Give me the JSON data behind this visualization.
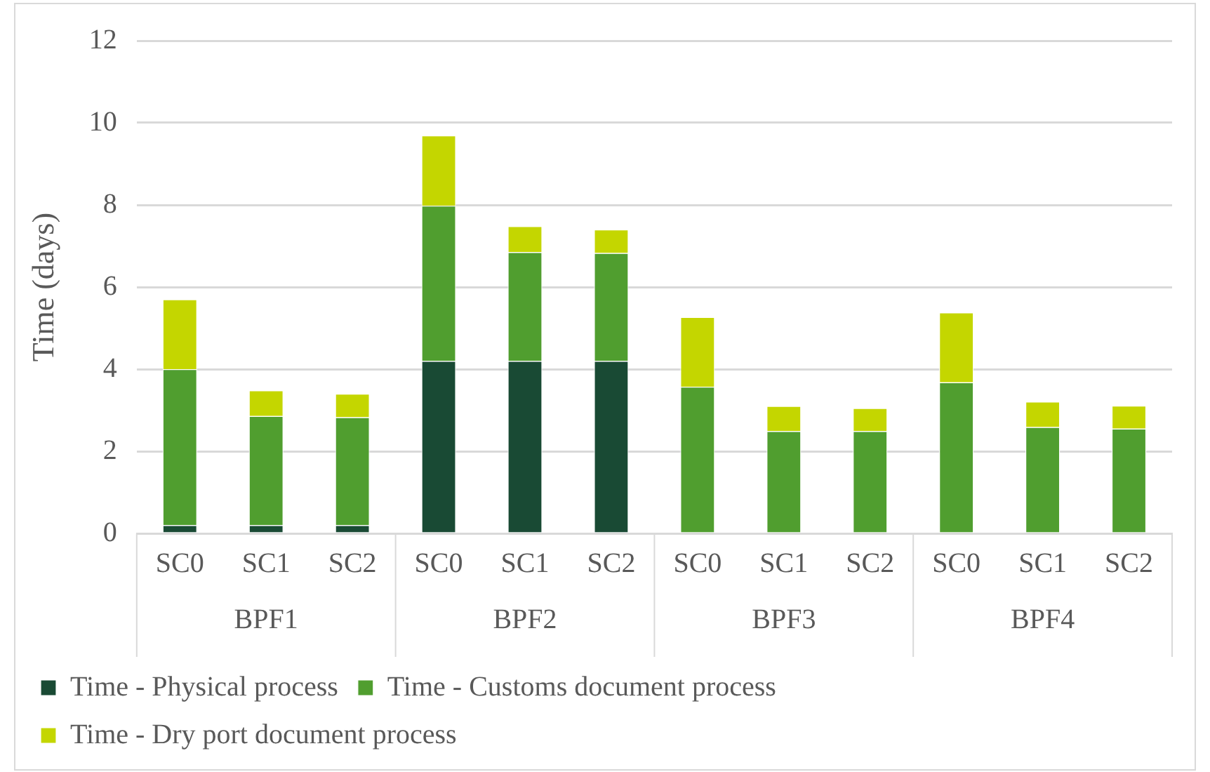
{
  "chart_data": {
    "type": "bar",
    "stacked": true,
    "ylabel": "Time (days)",
    "categories": [
      "SC0",
      "SC1",
      "SC2",
      "SC0",
      "SC1",
      "SC2",
      "SC0",
      "SC1",
      "SC2",
      "SC0",
      "SC1",
      "SC2"
    ],
    "annotations": [
      "BPF1",
      "BPF2",
      "BPF3",
      "BPF4"
    ],
    "series": [
      {
        "name": "Time - Physical process",
        "color": "#194a34",
        "values": [
          0.2,
          0.2,
          0.2,
          4.2,
          4.2,
          4.2,
          0,
          0,
          0,
          0,
          0,
          0
        ]
      },
      {
        "name": "Time - Customs document process",
        "color": "#509e2f",
        "values": [
          3.8,
          2.66,
          2.63,
          3.78,
          2.65,
          2.63,
          3.57,
          2.49,
          2.49,
          3.68,
          2.59,
          2.55
        ]
      },
      {
        "name": "Time - Dry port document process",
        "color": "#c4d600",
        "values": [
          1.7,
          0.62,
          0.57,
          1.71,
          0.63,
          0.57,
          1.7,
          0.61,
          0.56,
          1.7,
          0.62,
          0.56
        ]
      }
    ],
    "ylim": [
      0,
      12
    ],
    "yticks": [
      0,
      2,
      4,
      6,
      8,
      10,
      12
    ],
    "grid": "y",
    "legend": "bottom"
  }
}
